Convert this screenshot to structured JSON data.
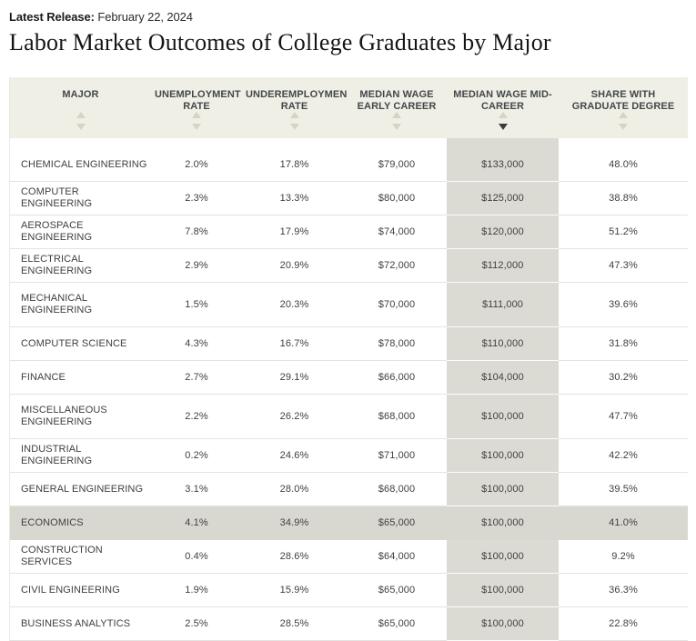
{
  "page": {
    "release_label": "Latest Release:",
    "release_date": "February 22, 2024",
    "title": "Labor Market Outcomes of College Graduates by Major"
  },
  "colors": {
    "header_bg": "#f0efe5",
    "header_text": "#43474b",
    "mid_col_bg": "#dcdbd3",
    "row_highlight_bg": "#d9d8d0",
    "row_border": "#e4e3e0",
    "arrow_inactive": "#d6d4c7",
    "arrow_active": "#3c3c3c",
    "text": "#404040"
  },
  "table": {
    "columns": [
      {
        "id": "major",
        "label": "MAJOR",
        "sort": "none"
      },
      {
        "id": "unemployment_rate",
        "label": "UNEMPLOYMENT RATE",
        "sort": "none"
      },
      {
        "id": "underemployment_rate",
        "label": "UNDEREMPLOYMENT RATE",
        "sort": "none"
      },
      {
        "id": "median_wage_early_career",
        "label": "MEDIAN WAGE EARLY CAREER",
        "sort": "none"
      },
      {
        "id": "median_wage_mid_career",
        "label": "MEDIAN WAGE MID-CAREER",
        "sort": "desc"
      },
      {
        "id": "share_with_graduate_degree",
        "label": "SHARE WITH GRADUATE DEGREE",
        "sort": "none"
      }
    ],
    "rows": [
      {
        "major_lines": [
          "CHEMICAL ENGINEERING"
        ],
        "values": [
          "2.0%",
          "17.8%",
          "$79,000",
          "$133,000",
          "48.0%"
        ],
        "highlighted": false
      },
      {
        "major_lines": [
          "COMPUTER ENGINEERING"
        ],
        "values": [
          "2.3%",
          "13.3%",
          "$80,000",
          "$125,000",
          "38.8%"
        ],
        "highlighted": false
      },
      {
        "major_lines": [
          "AEROSPACE ENGINEERING"
        ],
        "values": [
          "7.8%",
          "17.9%",
          "$74,000",
          "$120,000",
          "51.2%"
        ],
        "highlighted": false
      },
      {
        "major_lines": [
          "ELECTRICAL ENGINEERING"
        ],
        "values": [
          "2.9%",
          "20.9%",
          "$72,000",
          "$112,000",
          "47.3%"
        ],
        "highlighted": false
      },
      {
        "major_lines": [
          "MECHANICAL",
          "ENGINEERING"
        ],
        "values": [
          "1.5%",
          "20.3%",
          "$70,000",
          "$111,000",
          "39.6%"
        ],
        "highlighted": false
      },
      {
        "major_lines": [
          "COMPUTER SCIENCE"
        ],
        "values": [
          "4.3%",
          "16.7%",
          "$78,000",
          "$110,000",
          "31.8%"
        ],
        "highlighted": false
      },
      {
        "major_lines": [
          "FINANCE"
        ],
        "values": [
          "2.7%",
          "29.1%",
          "$66,000",
          "$104,000",
          "30.2%"
        ],
        "highlighted": false
      },
      {
        "major_lines": [
          "MISCELLANEOUS",
          "ENGINEERING"
        ],
        "values": [
          "2.2%",
          "26.2%",
          "$68,000",
          "$100,000",
          "47.7%"
        ],
        "highlighted": false
      },
      {
        "major_lines": [
          "INDUSTRIAL ENGINEERING"
        ],
        "values": [
          "0.2%",
          "24.6%",
          "$71,000",
          "$100,000",
          "42.2%"
        ],
        "highlighted": false
      },
      {
        "major_lines": [
          "GENERAL ENGINEERING"
        ],
        "values": [
          "3.1%",
          "28.0%",
          "$68,000",
          "$100,000",
          "39.5%"
        ],
        "highlighted": false
      },
      {
        "major_lines": [
          "ECONOMICS"
        ],
        "values": [
          "4.1%",
          "34.9%",
          "$65,000",
          "$100,000",
          "41.0%"
        ],
        "highlighted": true
      },
      {
        "major_lines": [
          "CONSTRUCTION SERVICES"
        ],
        "values": [
          "0.4%",
          "28.6%",
          "$64,000",
          "$100,000",
          "9.2%"
        ],
        "highlighted": false
      },
      {
        "major_lines": [
          "CIVIL ENGINEERING"
        ],
        "values": [
          "1.9%",
          "15.9%",
          "$65,000",
          "$100,000",
          "36.3%"
        ],
        "highlighted": false
      },
      {
        "major_lines": [
          "BUSINESS ANALYTICS"
        ],
        "values": [
          "2.5%",
          "28.5%",
          "$65,000",
          "$100,000",
          "22.8%"
        ],
        "highlighted": false
      }
    ]
  }
}
